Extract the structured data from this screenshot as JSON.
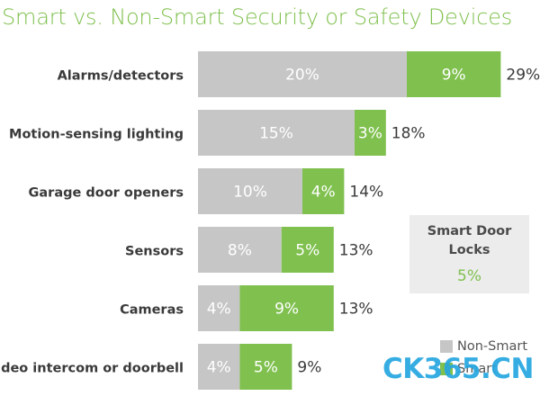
{
  "chart_data": {
    "type": "bar",
    "stacked": true,
    "orientation": "horizontal",
    "title": "Smart vs. Non-Smart Security or Safety Devices",
    "categories": [
      "Alarms/detectors",
      "Motion-sensing lighting",
      "Garage door openers",
      "Sensors",
      "Cameras",
      "Video intercom or doorbell"
    ],
    "series": [
      {
        "name": "Non-Smart",
        "color": "#c6c6c6",
        "values": [
          20,
          15,
          10,
          8,
          4,
          4
        ],
        "labels": [
          "20%",
          "15%",
          "10%",
          "8%",
          "4%",
          "4%"
        ]
      },
      {
        "name": "Smart",
        "color": "#7fc04e",
        "values": [
          9,
          3,
          4,
          5,
          9,
          5
        ],
        "labels": [
          "9%",
          "3%",
          "4%",
          "5%",
          "9%",
          "5%"
        ]
      }
    ],
    "totals": [
      29,
      18,
      14,
      13,
      13,
      9
    ],
    "total_labels": [
      "29%",
      "18%",
      "14%",
      "13%",
      "13%",
      "9%"
    ],
    "legend_position": "bottom-right",
    "grid": false
  },
  "callout": {
    "title": "Smart Door Locks",
    "value": "5%"
  },
  "watermark": "CK365.CN"
}
